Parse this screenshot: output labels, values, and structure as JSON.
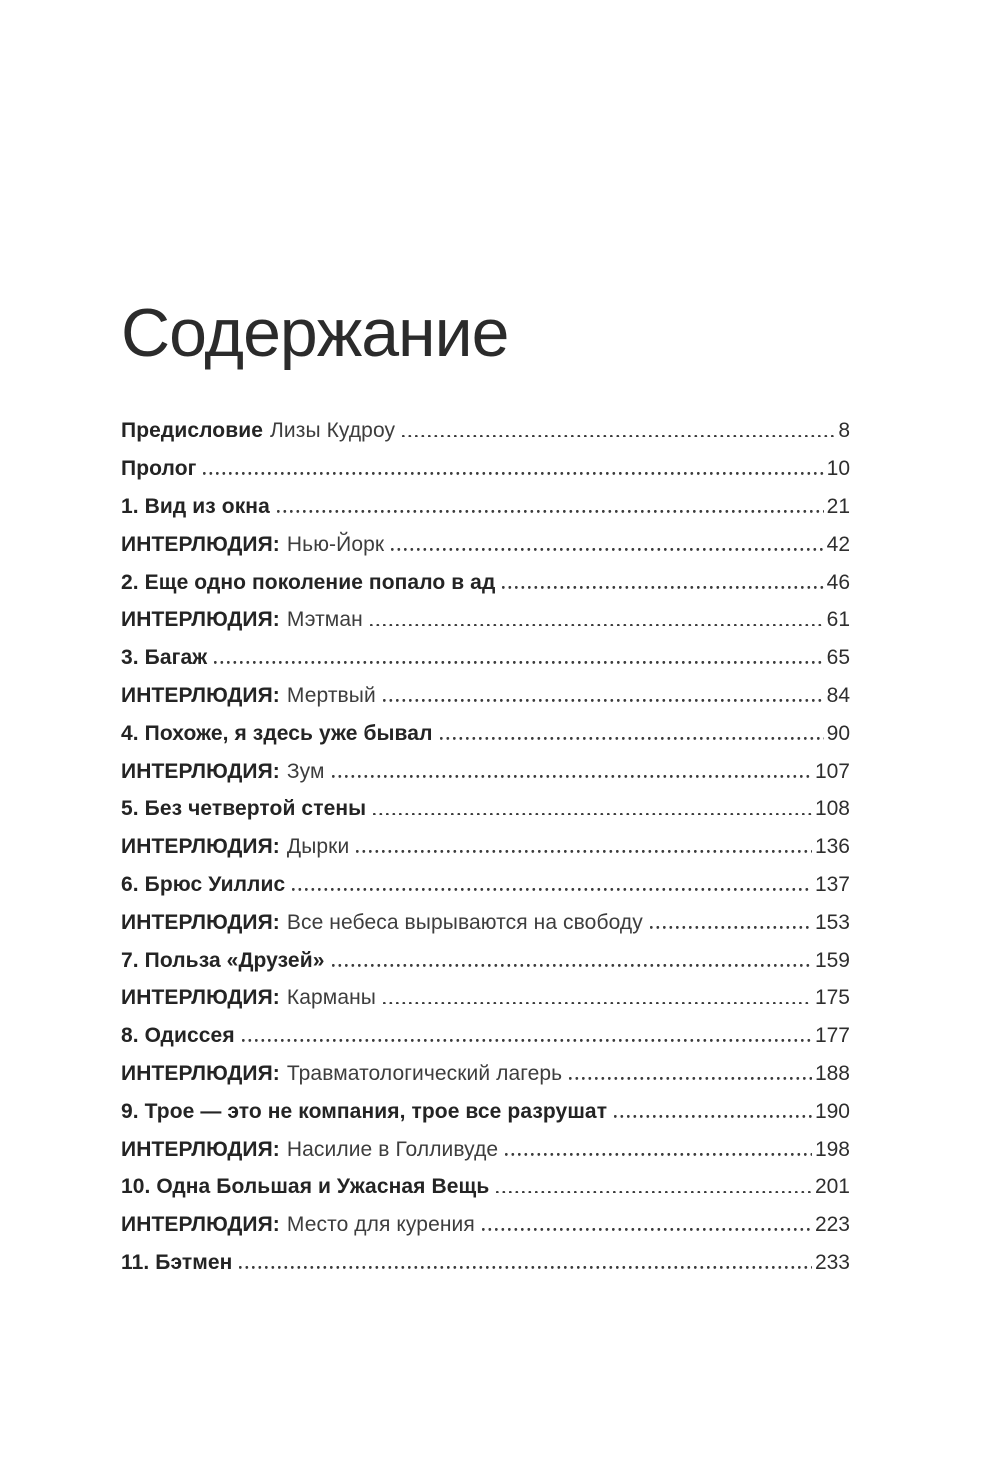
{
  "page": {
    "title": "Содержание"
  },
  "toc": {
    "entries": [
      {
        "label": "Предисловие",
        "sub": "Лизы Кудроу",
        "page": "8"
      },
      {
        "label": "Пролог",
        "sub": "",
        "page": "10"
      },
      {
        "label": "1. Вид из окна",
        "sub": "",
        "page": "21"
      },
      {
        "label": "ИНТЕРЛЮДИЯ:",
        "sub": "Нью-Йорк",
        "page": "42"
      },
      {
        "label": "2. Еще одно поколение попало в ад",
        "sub": "",
        "page": "46"
      },
      {
        "label": "ИНТЕРЛЮДИЯ:",
        "sub": "Мэтман",
        "page": "61"
      },
      {
        "label": "3. Багаж",
        "sub": "",
        "page": "65"
      },
      {
        "label": "ИНТЕРЛЮДИЯ:",
        "sub": "Мертвый",
        "page": "84"
      },
      {
        "label": "4. Похоже, я здесь уже бывал",
        "sub": "",
        "page": "90"
      },
      {
        "label": "ИНТЕРЛЮДИЯ:",
        "sub": "Зум",
        "page": "107"
      },
      {
        "label": "5. Без четвертой стены",
        "sub": "",
        "page": "108"
      },
      {
        "label": "ИНТЕРЛЮДИЯ:",
        "sub": "Дырки",
        "page": "136"
      },
      {
        "label": "6. Брюс Уиллис",
        "sub": "",
        "page": "137"
      },
      {
        "label": "ИНТЕРЛЮДИЯ:",
        "sub": "Все небеса вырываются на свободу",
        "page": "153"
      },
      {
        "label": "7. Польза «Друзей»",
        "sub": "",
        "page": "159"
      },
      {
        "label": "ИНТЕРЛЮДИЯ:",
        "sub": "Карманы",
        "page": "175"
      },
      {
        "label": "8. Одиссея",
        "sub": "",
        "page": "177"
      },
      {
        "label": "ИНТЕРЛЮДИЯ:",
        "sub": "Травматологический лагерь",
        "page": "188"
      },
      {
        "label": "9. Трое — это не компания, трое все разрушат",
        "sub": "",
        "page": "190"
      },
      {
        "label": "ИНТЕРЛЮДИЯ:",
        "sub": "Насилие в Голливуде",
        "page": "198"
      },
      {
        "label": "10. Одна Большая и Ужасная Вещь",
        "sub": "",
        "page": "201"
      },
      {
        "label": "ИНТЕРЛЮДИЯ:",
        "sub": "Место для курения",
        "page": "223"
      },
      {
        "label": "11. Бэтмен",
        "sub": "",
        "page": "233"
      }
    ]
  }
}
